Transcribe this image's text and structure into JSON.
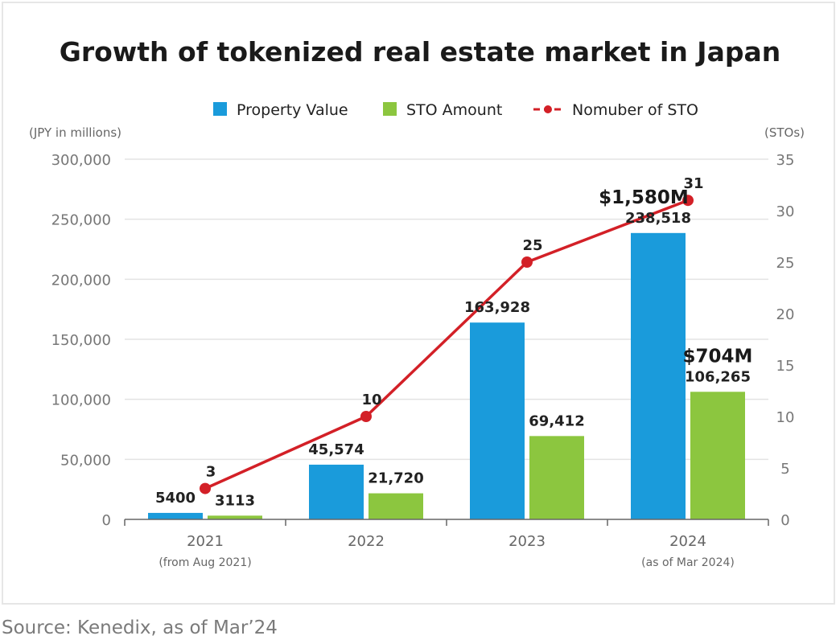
{
  "chart_data": {
    "type": "bar",
    "title": "Growth of tokenized real estate market in Japan",
    "categories": [
      "2021",
      "2022",
      "2023",
      "2024"
    ],
    "category_notes": [
      "(from Aug 2021)",
      "",
      "",
      "(as of Mar 2024)"
    ],
    "series": [
      {
        "name": "Property Value",
        "type": "bar",
        "axis": "left",
        "color": "#1a9bdb",
        "values": [
          5400,
          45574,
          163928,
          238518
        ],
        "labels": [
          "5400",
          "45,574",
          "163,928",
          "238,518"
        ]
      },
      {
        "name": "STO Amount",
        "type": "bar",
        "axis": "left",
        "color": "#8cc63f",
        "values": [
          3113,
          21720,
          69412,
          106265
        ],
        "labels": [
          "3113",
          "21,720",
          "69,412",
          "106,265"
        ]
      },
      {
        "name": "Nomuber of STO",
        "type": "line",
        "axis": "right",
        "color": "#d32027",
        "values": [
          3,
          10,
          25,
          31
        ],
        "labels": [
          "3",
          "10",
          "25",
          "31"
        ]
      }
    ],
    "ylabel_left": "(JPY in millions)",
    "ylabel_right": "(STOs)",
    "ylim_left": [
      0,
      300000
    ],
    "yticks_left": [
      "0",
      "50,000",
      "100,000",
      "150,000",
      "200,000",
      "250,000",
      "300,000"
    ],
    "ylim_right": [
      0,
      35
    ],
    "yticks_right": [
      "0",
      "5",
      "10",
      "15",
      "20",
      "25",
      "30",
      "35"
    ],
    "annotations": [
      {
        "text": "$1,580M",
        "category": "2024",
        "series": "Property Value"
      },
      {
        "text": "$704M",
        "category": "2024",
        "series": "STO Amount"
      }
    ],
    "legend_position": "top",
    "grid": true
  },
  "source": "Source: Kenedix, as of Mar’24"
}
